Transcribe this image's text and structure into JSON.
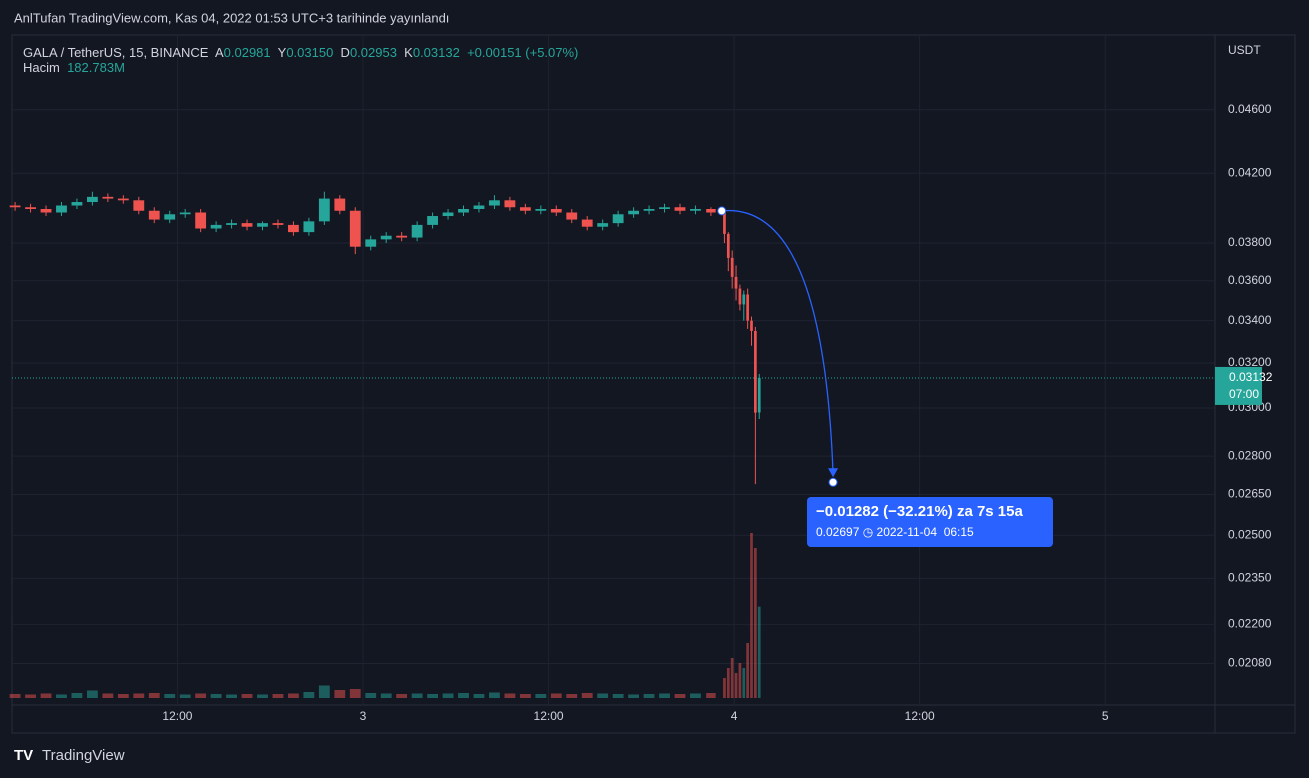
{
  "published": "AnlTufan TradingView.com, Kas 04, 2022 01:53 UTC+3 tarihinde yayınlandı",
  "brand": "TradingView",
  "header": {
    "symbol": "GALA / TetherUS, 15, BINANCE",
    "open_label": "A",
    "open": "0.02981",
    "high_label": "Y",
    "high": "0.03150",
    "low_label": "D",
    "low": "0.02953",
    "close_label": "K",
    "close": "0.03132",
    "change": "+0.00151 (+5.07%)",
    "volume_label": "Hacim",
    "volume": "182.783M"
  },
  "countdown": "07:00",
  "measure": {
    "text": "−0.01282 (−32.21%) za 7s 15a",
    "date": "2022-11-04  06:15",
    "from": {
      "x": 47.2,
      "price": 0.03979
    },
    "to": {
      "x": 54.4,
      "price": 0.02697
    }
  },
  "chart_data": {
    "type": "candlestick",
    "log_scale": true,
    "grid": true,
    "up_color": "#26a69a",
    "down_color": "#ef5350",
    "y_unit": "USDT",
    "xlim": [
      1.3,
      79.1
    ],
    "xticks": [
      {
        "value": 12,
        "label": "12:00"
      },
      {
        "value": 24,
        "label": "3"
      },
      {
        "value": 36,
        "label": "12:00"
      },
      {
        "value": 48,
        "label": "4"
      },
      {
        "value": 60,
        "label": "12:00"
      },
      {
        "value": 72,
        "label": "5"
      }
    ],
    "ylim": [
      0.0196,
      0.0512
    ],
    "yticks": [
      {
        "value": 0.0208,
        "label": "0.02080"
      },
      {
        "value": 0.022,
        "label": "0.02200"
      },
      {
        "value": 0.0235,
        "label": "0.02350"
      },
      {
        "value": 0.025,
        "label": "0.02500"
      },
      {
        "value": 0.0265,
        "label": "0.02650"
      },
      {
        "value": 0.028,
        "label": "0.02800"
      },
      {
        "value": 0.03,
        "label": "0.03000"
      },
      {
        "value": 0.032,
        "label": "0.03200"
      },
      {
        "value": 0.034,
        "label": "0.03400"
      },
      {
        "value": 0.036,
        "label": "0.03600"
      },
      {
        "value": 0.038,
        "label": "0.03800"
      },
      {
        "value": 0.042,
        "label": "0.04200"
      },
      {
        "value": 0.046,
        "label": "0.04600"
      }
    ],
    "x": [
      1.5,
      2.5,
      3.5,
      4.5,
      5.5,
      6.5,
      7.5,
      8.5,
      9.5,
      10.5,
      11.5,
      12.5,
      13.5,
      14.5,
      15.5,
      16.5,
      17.5,
      18.5,
      19.5,
      20.5,
      21.5,
      22.5,
      23.5,
      24.5,
      25.5,
      26.5,
      27.5,
      28.5,
      29.5,
      30.5,
      31.5,
      32.5,
      33.5,
      34.5,
      35.5,
      36.5,
      37.5,
      38.5,
      39.5,
      40.5,
      41.5,
      42.5,
      43.5,
      44.5,
      45.5,
      46.5,
      47.375,
      47.625,
      47.875,
      48.125,
      48.375,
      48.625,
      48.875,
      49.125,
      49.375,
      49.625
    ],
    "open": [
      0.0401,
      0.04,
      0.0399,
      0.0397,
      0.0401,
      0.0403,
      0.0406,
      0.0405,
      0.0404,
      0.0398,
      0.0393,
      0.0396,
      0.0397,
      0.0388,
      0.039,
      0.0391,
      0.0389,
      0.0391,
      0.039,
      0.0386,
      0.0392,
      0.0405,
      0.0398,
      0.0378,
      0.0382,
      0.0384,
      0.0383,
      0.039,
      0.0395,
      0.0397,
      0.0399,
      0.0401,
      0.0404,
      0.04,
      0.0398,
      0.0399,
      0.0397,
      0.0393,
      0.0389,
      0.0391,
      0.0396,
      0.0398,
      0.0399,
      0.04,
      0.0398,
      0.0399,
      0.0397,
      0.0385,
      0.0372,
      0.0362,
      0.0356,
      0.0348,
      0.0353,
      0.034,
      0.0335,
      0.02981
    ],
    "high": [
      0.0403,
      0.0402,
      0.0401,
      0.0403,
      0.0405,
      0.0409,
      0.0408,
      0.0407,
      0.0406,
      0.04,
      0.0398,
      0.0399,
      0.0399,
      0.0392,
      0.0393,
      0.0393,
      0.0392,
      0.0393,
      0.0392,
      0.0394,
      0.0409,
      0.0407,
      0.04,
      0.0384,
      0.0386,
      0.0386,
      0.0392,
      0.0397,
      0.0399,
      0.0401,
      0.0403,
      0.0407,
      0.0406,
      0.0402,
      0.0401,
      0.0401,
      0.0399,
      0.0395,
      0.0393,
      0.0398,
      0.04,
      0.0401,
      0.0402,
      0.0402,
      0.0401,
      0.04,
      0.0398,
      0.0386,
      0.0376,
      0.0368,
      0.0358,
      0.0355,
      0.0356,
      0.0342,
      0.0337,
      0.0315
    ],
    "low": [
      0.0398,
      0.0397,
      0.0395,
      0.0395,
      0.0399,
      0.0401,
      0.0403,
      0.0402,
      0.0396,
      0.0391,
      0.0391,
      0.0394,
      0.0386,
      0.0386,
      0.0388,
      0.0387,
      0.0387,
      0.0388,
      0.0384,
      0.0384,
      0.039,
      0.0396,
      0.0374,
      0.0376,
      0.038,
      0.0381,
      0.0381,
      0.0388,
      0.0393,
      0.0395,
      0.0397,
      0.0399,
      0.0398,
      0.0396,
      0.0396,
      0.0395,
      0.0391,
      0.0387,
      0.0387,
      0.0389,
      0.0394,
      0.0396,
      0.0397,
      0.0396,
      0.0396,
      0.0395,
      0.038,
      0.0365,
      0.0356,
      0.035,
      0.0345,
      0.034,
      0.0336,
      0.0328,
      0.0269,
      0.02953
    ],
    "close": [
      0.04,
      0.0399,
      0.0397,
      0.0401,
      0.0403,
      0.0406,
      0.0405,
      0.0404,
      0.0398,
      0.0393,
      0.0396,
      0.0397,
      0.0388,
      0.039,
      0.0391,
      0.0389,
      0.0391,
      0.039,
      0.0386,
      0.0392,
      0.0405,
      0.0398,
      0.0378,
      0.0382,
      0.0384,
      0.0383,
      0.039,
      0.0395,
      0.0397,
      0.0399,
      0.0401,
      0.0404,
      0.04,
      0.0398,
      0.0399,
      0.0397,
      0.0393,
      0.0389,
      0.0391,
      0.0396,
      0.0398,
      0.0399,
      0.04,
      0.0398,
      0.0399,
      0.0397,
      0.0385,
      0.0372,
      0.0362,
      0.0356,
      0.0348,
      0.0353,
      0.034,
      0.0335,
      0.0298,
      0.03132
    ],
    "volume": [
      8,
      7,
      9,
      7,
      10,
      15,
      9,
      8,
      9,
      10,
      8,
      7,
      9,
      8,
      7,
      8,
      7,
      8,
      9,
      12,
      25,
      16,
      18,
      10,
      9,
      8,
      9,
      8,
      9,
      10,
      8,
      11,
      9,
      8,
      8,
      9,
      8,
      10,
      9,
      8,
      7,
      8,
      9,
      8,
      9,
      10,
      40,
      60,
      80,
      50,
      70,
      60,
      110,
      330,
      300,
      182.783
    ]
  }
}
